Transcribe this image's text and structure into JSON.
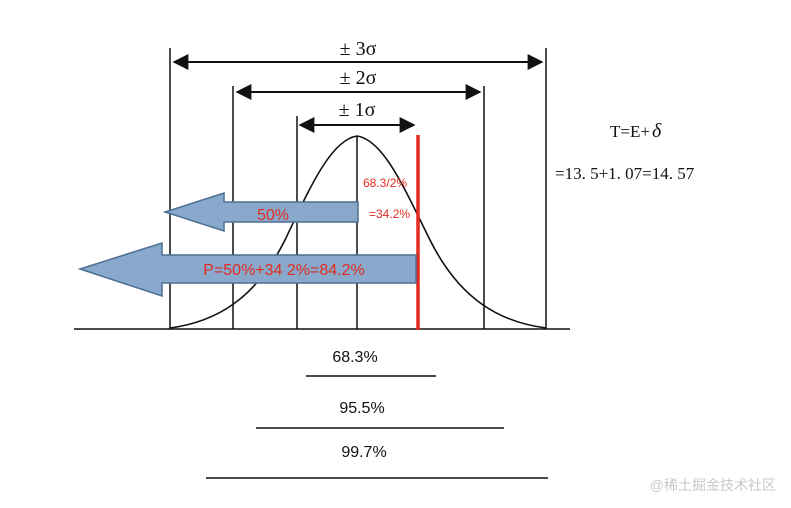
{
  "diagram": {
    "labels": {
      "pm3": "± 3σ",
      "pm2": "± 2σ",
      "pm1": "± 1σ"
    },
    "formula": {
      "line1": "T=E+",
      "delta": "δ",
      "line2": "=13. 5+1. 07=14. 57"
    },
    "red_notes": {
      "note1": "68.3/2%",
      "note2": "=34.2%"
    },
    "arrows": {
      "small": "50%",
      "large": "P=50%+34 2%=84.2%"
    },
    "coverage": {
      "c1": "68.3%",
      "c2": "95.5%",
      "c3": "99.7%"
    },
    "watermark": "@稀土掘金技术社区",
    "colors": {
      "arrow_fill": "#88a9cc",
      "arrow_stroke": "#4f6f94",
      "red": "#e32b1f",
      "ink": "#111111"
    }
  }
}
